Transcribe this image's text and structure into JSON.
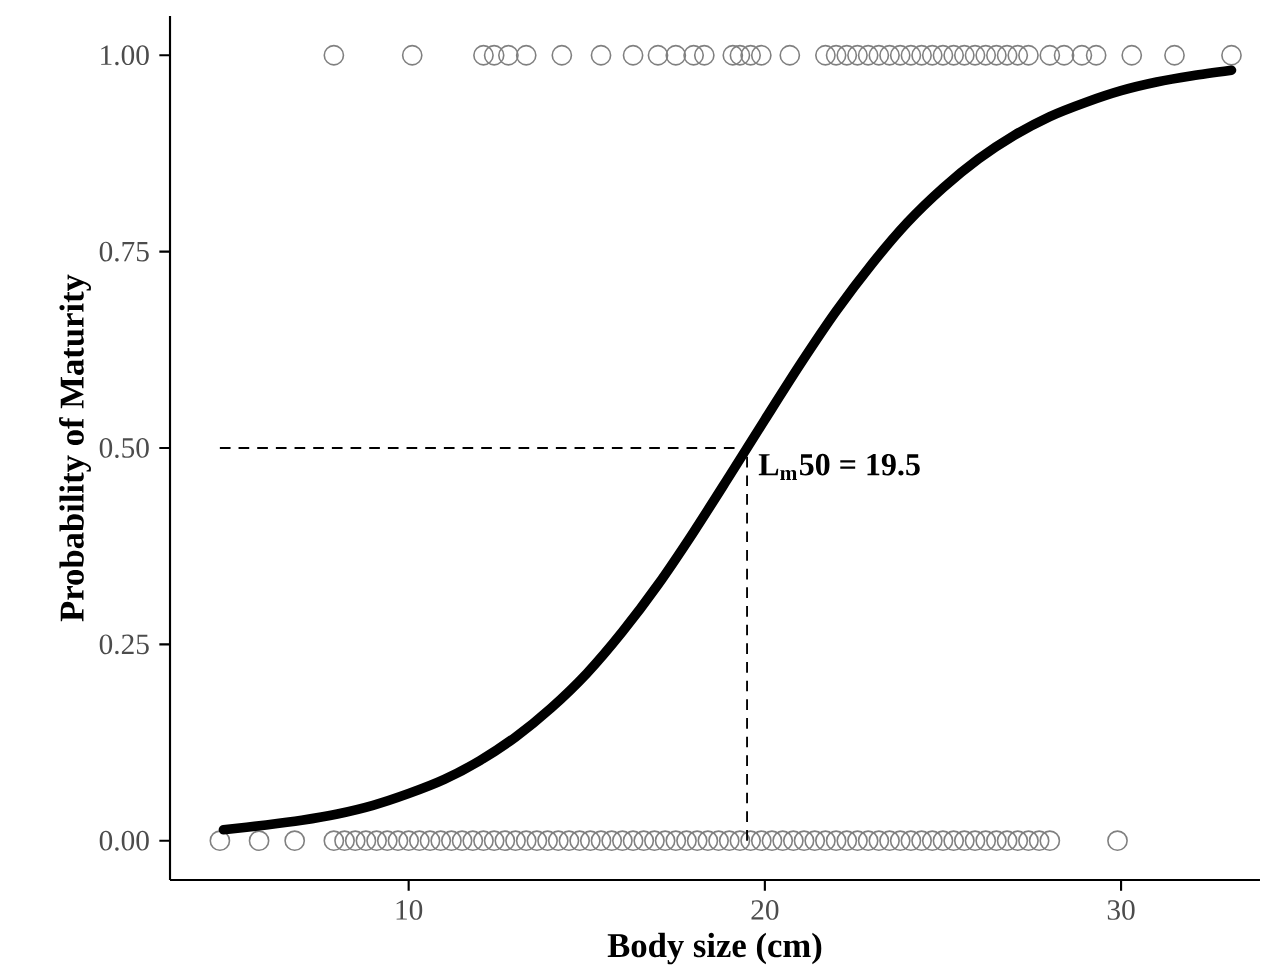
{
  "chart_data": {
    "type": "scatter",
    "xlabel": "Body size (cm)",
    "ylabel": "Probability of Maturity",
    "xlim": [
      3.3,
      33.9
    ],
    "ylim": [
      -0.05,
      1.05
    ],
    "xticks": [
      10,
      20,
      30
    ],
    "yticks": [
      {
        "value": 0,
        "label": "0.00"
      },
      {
        "value": 0.25,
        "label": "0.25"
      },
      {
        "value": 0.5,
        "label": "0.50"
      },
      {
        "value": 0.75,
        "label": "0.75"
      },
      {
        "value": 1,
        "label": "1.00"
      }
    ],
    "grid": false,
    "series": [
      {
        "marker": "circle",
        "color": "#808080",
        "x": [
          7.9,
          10.1,
          12.1,
          12.4,
          12.8,
          13.3,
          14.3,
          15.4,
          16.3,
          17.0,
          17.5,
          18.0,
          18.3,
          19.1,
          19.3,
          19.6,
          19.9,
          20.7,
          21.7,
          22.0,
          22.3,
          22.6,
          22.9,
          23.2,
          23.5,
          23.8,
          24.1,
          24.4,
          24.7,
          25.0,
          25.3,
          25.6,
          25.9,
          26.2,
          26.5,
          26.8,
          27.1,
          27.4,
          28.0,
          28.4,
          28.9,
          29.3,
          30.3,
          31.5,
          33.1,
          4.7,
          5.8,
          6.8,
          7.9,
          8.2,
          8.5,
          8.8,
          9.1,
          9.4,
          9.7,
          10.0,
          10.3,
          10.6,
          10.9,
          11.2,
          11.5,
          11.8,
          12.1,
          12.4,
          12.7,
          13.0,
          13.3,
          13.6,
          13.9,
          14.2,
          14.5,
          14.8,
          15.1,
          15.4,
          15.7,
          16.0,
          16.3,
          16.6,
          16.9,
          17.2,
          17.5,
          17.8,
          18.1,
          18.4,
          18.7,
          19.0,
          19.3,
          19.6,
          19.9,
          20.2,
          20.5,
          20.8,
          21.1,
          21.4,
          21.7,
          22.0,
          22.3,
          22.6,
          22.9,
          23.2,
          23.5,
          23.8,
          24.1,
          24.4,
          24.7,
          25.0,
          25.3,
          25.6,
          25.9,
          26.2,
          26.5,
          26.8,
          27.1,
          27.4,
          27.7,
          28.0,
          29.9
        ],
        "values": [
          1,
          1,
          1,
          1,
          1,
          1,
          1,
          1,
          1,
          1,
          1,
          1,
          1,
          1,
          1,
          1,
          1,
          1,
          1,
          1,
          1,
          1,
          1,
          1,
          1,
          1,
          1,
          1,
          1,
          1,
          1,
          1,
          1,
          1,
          1,
          1,
          1,
          1,
          1,
          1,
          1,
          1,
          1,
          1,
          1,
          0,
          0,
          0,
          0,
          0,
          0,
          0,
          0,
          0,
          0,
          0,
          0,
          0,
          0,
          0,
          0,
          0,
          0,
          0,
          0,
          0,
          0,
          0,
          0,
          0,
          0,
          0,
          0,
          0,
          0,
          0,
          0,
          0,
          0,
          0,
          0,
          0,
          0,
          0,
          0,
          0,
          0,
          0,
          0,
          0,
          0,
          0,
          0,
          0,
          0,
          0,
          0,
          0,
          0,
          0,
          0,
          0,
          0,
          0,
          0,
          0,
          0,
          0,
          0,
          0,
          0,
          0,
          0,
          0,
          0,
          0,
          0
        ]
      },
      {
        "type": "line",
        "color": "#000000",
        "x": [
          4.8,
          6,
          7,
          8,
          9,
          10,
          11,
          12,
          13,
          14,
          15,
          16,
          17,
          18,
          19,
          19.5,
          20,
          21,
          22,
          23,
          24,
          25,
          26,
          27,
          28,
          29,
          30,
          31,
          32,
          33.1
        ],
        "values": [
          0.014,
          0.02,
          0.026,
          0.034,
          0.045,
          0.06,
          0.078,
          0.102,
          0.132,
          0.169,
          0.213,
          0.266,
          0.326,
          0.393,
          0.464,
          0.5,
          0.536,
          0.607,
          0.674,
          0.734,
          0.787,
          0.831,
          0.868,
          0.898,
          0.922,
          0.94,
          0.955,
          0.966,
          0.974,
          0.981
        ]
      }
    ],
    "ref_lines": [
      {
        "axis": "y",
        "value": 0.5,
        "line_style": "dashed",
        "color": "#000000"
      },
      {
        "axis": "x",
        "value": 19.5,
        "line_style": "dashed",
        "color": "#000000"
      }
    ],
    "annotations": [
      {
        "text": "L$_{m}$50 = 19.5",
        "x": 19.5,
        "y": 0.5
      }
    ]
  }
}
